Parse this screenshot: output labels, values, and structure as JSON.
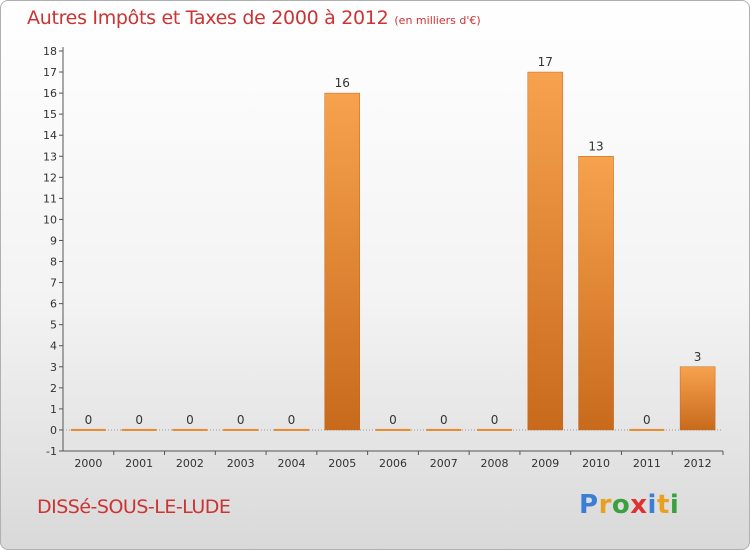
{
  "header": {
    "title": "Autres Impôts et Taxes de 2000 à 2012",
    "subtitle": "(en milliers d'€)"
  },
  "footer": {
    "commune": "DISSé-SOUS-LE-LUDE",
    "brand_letters": [
      "P",
      "r",
      "o",
      "x",
      "i",
      "t",
      "i"
    ]
  },
  "colors": {
    "title": "#cc3333",
    "bar_light": "#f7a24e",
    "bar_dark": "#c86a1c",
    "brand": [
      "#3a7fd5",
      "#e8a020",
      "#3aa040",
      "#e03030",
      "#3a7fd5",
      "#e8a020",
      "#3aa040"
    ]
  },
  "chart_data": {
    "type": "bar",
    "title": "Autres Impôts et Taxes de 2000 à 2012",
    "subtitle": "(en milliers d'€)",
    "categories": [
      "2000",
      "2001",
      "2002",
      "2003",
      "2004",
      "2005",
      "2006",
      "2007",
      "2008",
      "2009",
      "2010",
      "2011",
      "2012"
    ],
    "values": [
      0,
      0,
      0,
      0,
      0,
      16,
      0,
      0,
      0,
      17,
      13,
      0,
      3
    ],
    "data_labels": [
      "0",
      "0",
      "0",
      "0",
      "0",
      "16",
      "0",
      "0",
      "0",
      "17",
      "13",
      "0",
      "3"
    ],
    "y_ticks": [
      "-1",
      "0",
      "1",
      "2",
      "3",
      "4",
      "5",
      "6",
      "7",
      "8",
      "9",
      "10",
      "11",
      "12",
      "13",
      "14",
      "15",
      "16",
      "17",
      "18"
    ],
    "ylim": [
      -1,
      18
    ],
    "xlabel": "",
    "ylabel": "",
    "grid": false,
    "legend": "none"
  }
}
